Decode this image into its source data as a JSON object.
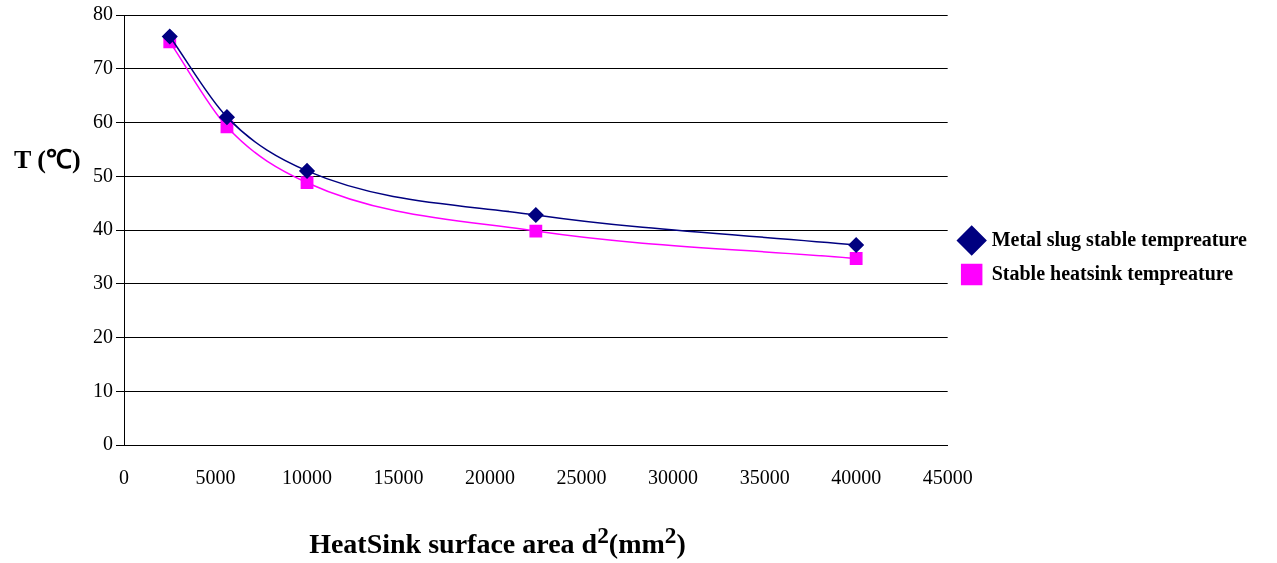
{
  "chart_data": {
    "type": "line",
    "xlabel": "HeatSink surface  area d$^{2}$(mm$^{2}$)",
    "ylabel": "T (℃)",
    "x": [
      2500,
      5625,
      10000,
      22500,
      40000
    ],
    "series": [
      {
        "name": "Metal slug stable tempreature",
        "color": "#000080",
        "marker": "diamond",
        "values": [
          76,
          61,
          51,
          42.8,
          37.2
        ]
      },
      {
        "name": "Stable heatsink tempreature",
        "color": "#ff00ff",
        "marker": "square",
        "values": [
          75,
          59.2,
          48.8,
          39.8,
          34.7
        ]
      }
    ],
    "xlim": [
      0,
      45000
    ],
    "xticks": [
      0,
      5000,
      10000,
      15000,
      20000,
      25000,
      30000,
      35000,
      40000,
      45000
    ],
    "ylim": [
      0,
      80
    ],
    "yticks": [
      0,
      10,
      20,
      30,
      40,
      50,
      60,
      70,
      80
    ],
    "grid": "y",
    "legend": "right"
  }
}
